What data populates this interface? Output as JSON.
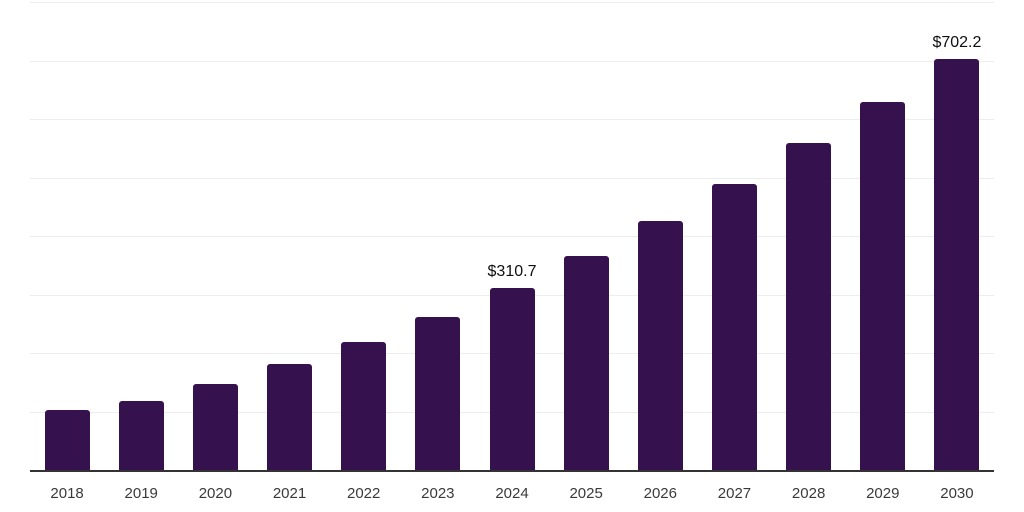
{
  "chart_data": {
    "type": "bar",
    "title": "",
    "xlabel": "",
    "ylabel": "",
    "categories": [
      "2018",
      "2019",
      "2020",
      "2021",
      "2022",
      "2023",
      "2024",
      "2025",
      "2026",
      "2027",
      "2028",
      "2029",
      "2030"
    ],
    "values": [
      102.3,
      117.6,
      146.6,
      181.3,
      219.2,
      262.3,
      310.7,
      365.7,
      426.4,
      489.4,
      558.5,
      628.3,
      702.2
    ],
    "data_labels": [
      "",
      "",
      "",
      "",
      "",
      "",
      "$310.7",
      "",
      "",
      "",
      "",
      "",
      "$702.2"
    ],
    "ylim": [
      0,
      800
    ],
    "gridline_step": 100,
    "grid": "horizontal-only",
    "y_axis_tick_labels_visible": false,
    "legend_position": "none",
    "colors": {
      "bar": "#35124e",
      "gridline": "#ededed",
      "axis_line": "#333333",
      "data_label_text": "#0f0f0f",
      "tick_label_text": "#3a3a3a",
      "background": "#ffffff"
    }
  }
}
